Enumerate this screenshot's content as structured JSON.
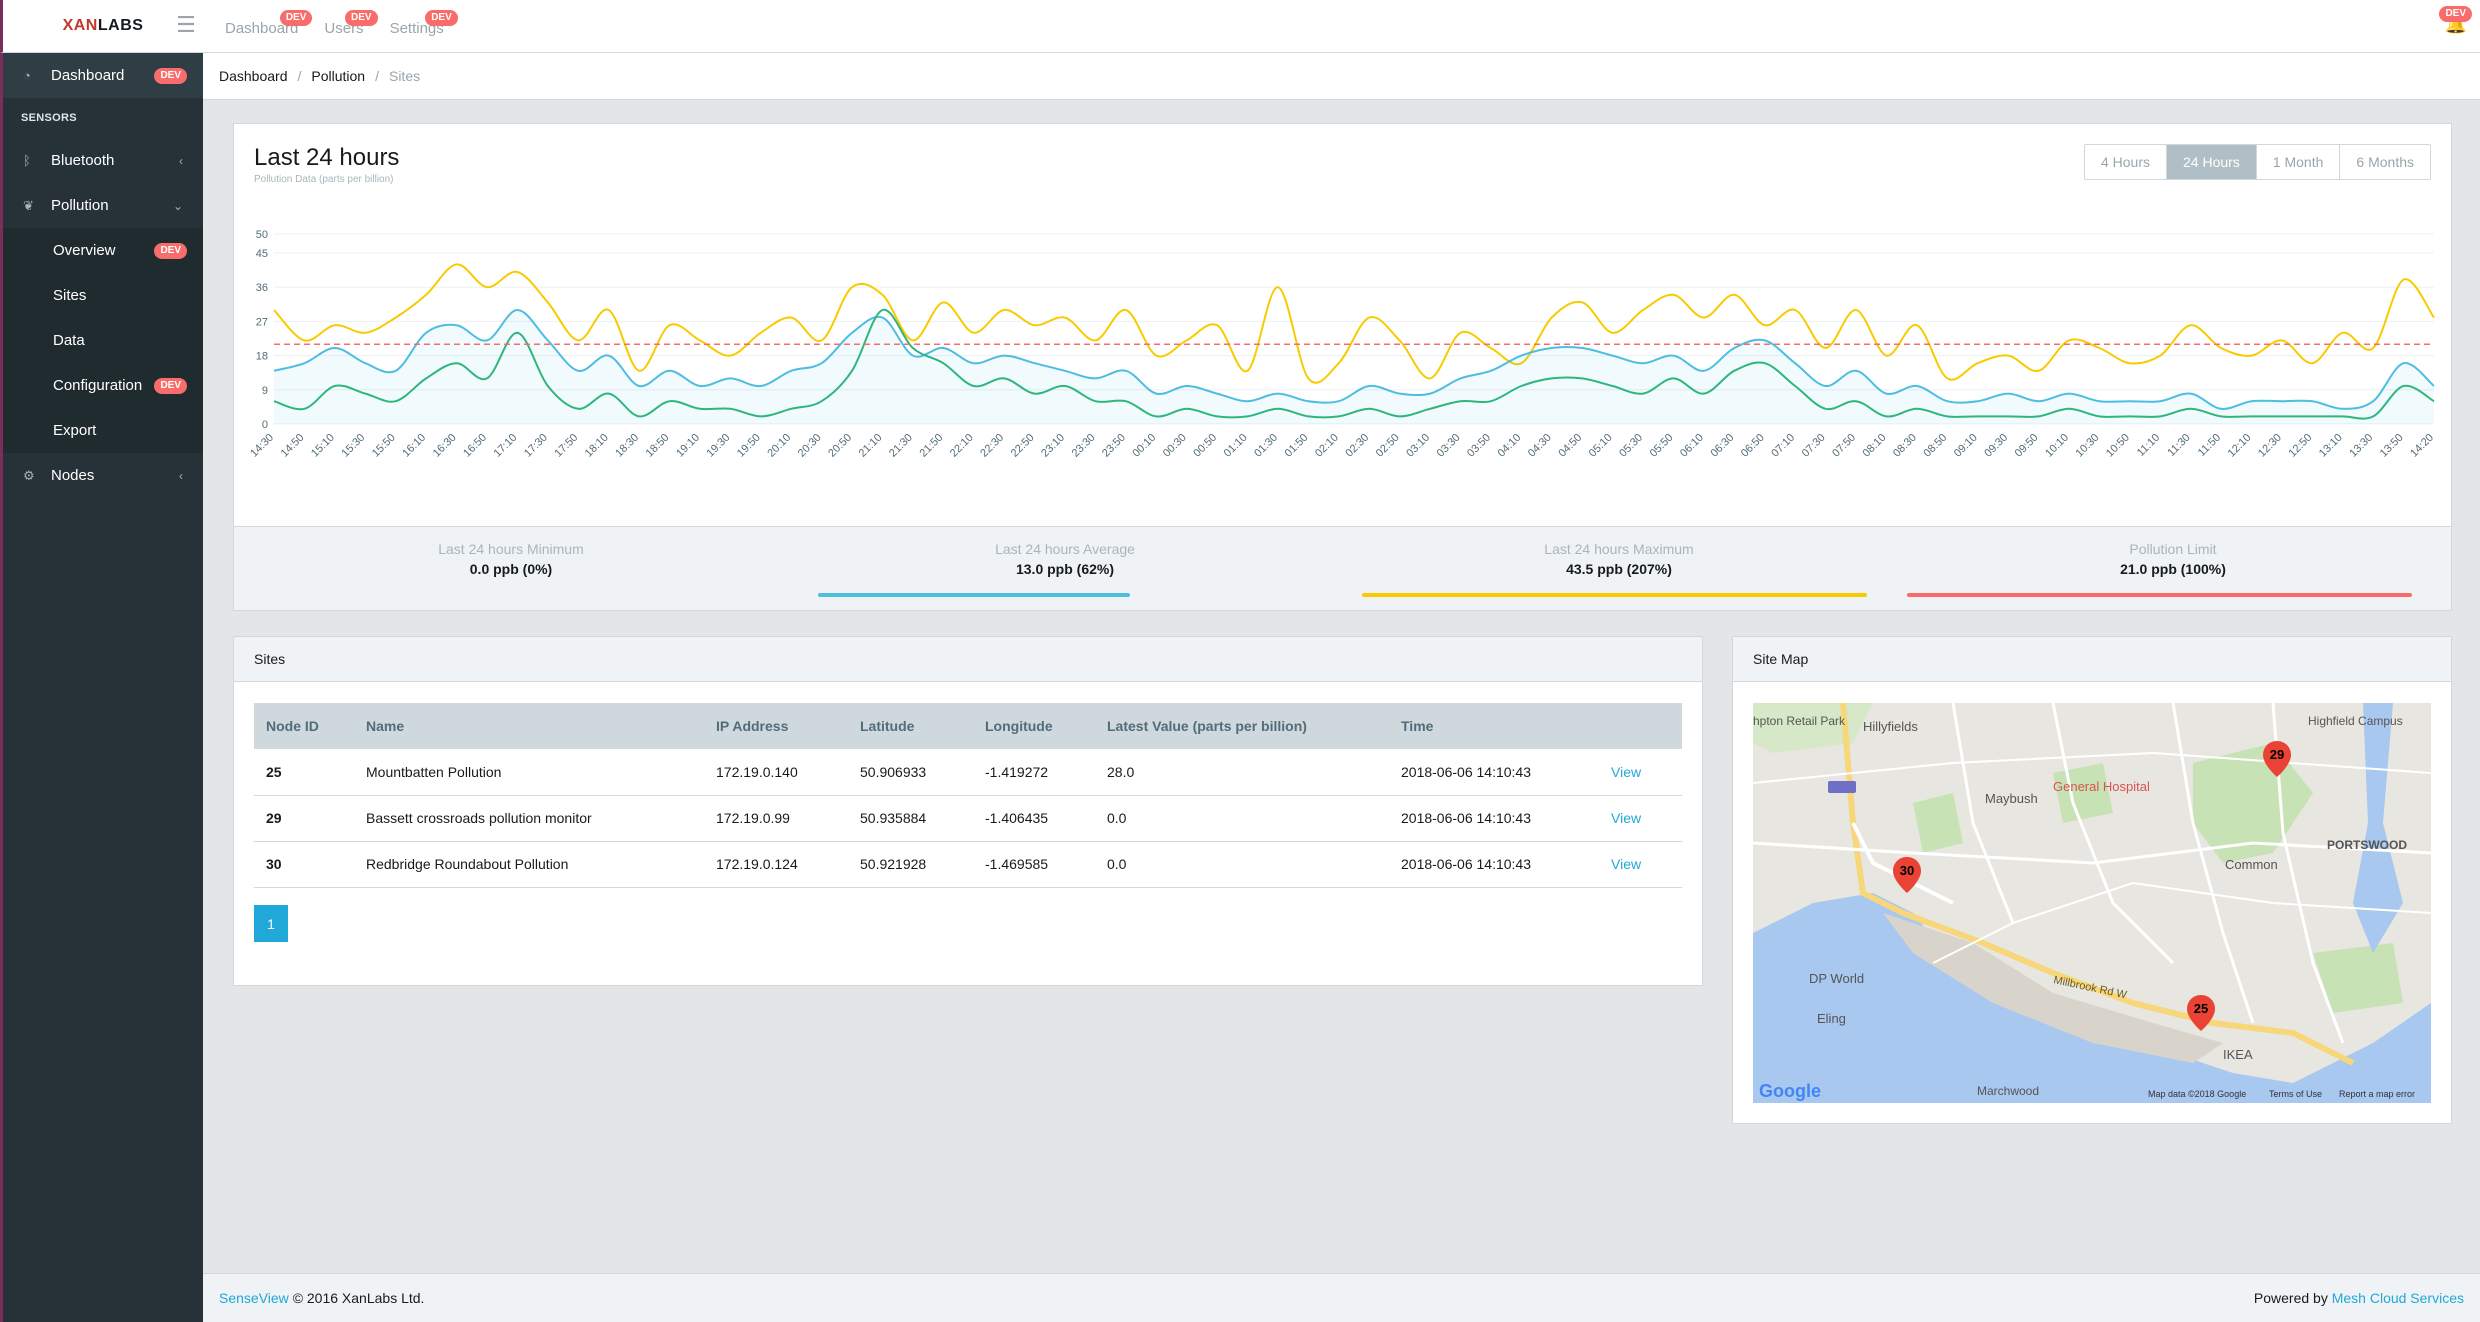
{
  "brand": {
    "prefix": "XAN",
    "suffix": "LABS"
  },
  "top_nav": [
    {
      "label": "Dashboard",
      "badge": "DEV"
    },
    {
      "label": "Users",
      "badge": "DEV"
    },
    {
      "label": "Settings",
      "badge": "DEV"
    }
  ],
  "bell_badge": "DEV",
  "sidebar": {
    "dashboard": {
      "label": "Dashboard",
      "badge": "DEV"
    },
    "section_title": "SENSORS",
    "bluetooth": {
      "label": "Bluetooth"
    },
    "pollution": {
      "label": "Pollution",
      "children": [
        {
          "label": "Overview",
          "badge": "DEV"
        },
        {
          "label": "Sites"
        },
        {
          "label": "Data"
        },
        {
          "label": "Configuration",
          "badge": "DEV"
        },
        {
          "label": "Export"
        }
      ]
    },
    "nodes": {
      "label": "Nodes"
    }
  },
  "breadcrumb": [
    "Dashboard",
    "Pollution",
    "Sites"
  ],
  "chart_card": {
    "title": "Last 24 hours",
    "subtitle": "Pollution Data (parts per billion)",
    "ranges": [
      "4 Hours",
      "24 Hours",
      "1 Month",
      "6 Months"
    ],
    "active_range": "24 Hours",
    "stats": [
      {
        "label": "Last 24 hours Minimum",
        "value": "0.0 ppb (0%)"
      },
      {
        "label": "Last 24 hours Average",
        "value": "13.0 ppb (62%)",
        "color": "#4dbde0"
      },
      {
        "label": "Last 24 hours Maximum",
        "value": "43.5 ppb (207%)",
        "color": "#f8cb00"
      },
      {
        "label": "Pollution Limit",
        "value": "21.0 ppb (100%)",
        "color": "#f86c6b"
      }
    ]
  },
  "chart_data": {
    "type": "line",
    "ylim": [
      0,
      50
    ],
    "yticks": [
      0,
      9,
      18,
      27,
      36,
      45,
      50
    ],
    "x": [
      "14:30",
      "14:50",
      "15:10",
      "15:30",
      "15:50",
      "16:10",
      "16:30",
      "16:50",
      "17:10",
      "17:30",
      "17:50",
      "18:10",
      "18:30",
      "18:50",
      "19:10",
      "19:30",
      "19:50",
      "20:10",
      "20:30",
      "20:50",
      "21:10",
      "21:30",
      "21:50",
      "22:10",
      "22:30",
      "22:50",
      "23:10",
      "23:30",
      "23:50",
      "00:10",
      "00:30",
      "00:50",
      "01:10",
      "01:30",
      "01:50",
      "02:10",
      "02:30",
      "02:50",
      "03:10",
      "03:30",
      "03:50",
      "04:10",
      "04:30",
      "04:50",
      "05:10",
      "05:30",
      "05:50",
      "06:10",
      "06:30",
      "06:50",
      "07:10",
      "07:30",
      "07:50",
      "08:10",
      "08:30",
      "08:50",
      "09:10",
      "09:30",
      "09:50",
      "10:10",
      "10:30",
      "10:50",
      "11:10",
      "11:30",
      "11:50",
      "12:10",
      "12:30",
      "12:50",
      "13:10",
      "13:30",
      "13:50",
      "14:20"
    ],
    "limit": 21,
    "colors": {
      "max": "#f8cb00",
      "avg": "#4dbde0",
      "min": "#2eb67d",
      "limit": "#f86c6b"
    },
    "series": [
      {
        "key": "max",
        "values": [
          30,
          22,
          26,
          24,
          28,
          34,
          42,
          36,
          40,
          32,
          22,
          30,
          14,
          26,
          22,
          18,
          24,
          28,
          22,
          36,
          34,
          22,
          32,
          24,
          30,
          26,
          28,
          22,
          30,
          18,
          22,
          26,
          14,
          36,
          12,
          16,
          28,
          22,
          12,
          24,
          20,
          16,
          28,
          32,
          24,
          30,
          34,
          28,
          34,
          26,
          30,
          20,
          30,
          18,
          26,
          12,
          16,
          18,
          14,
          22,
          20,
          16,
          18,
          26,
          20,
          18,
          22,
          16,
          24,
          20,
          38,
          28
        ]
      },
      {
        "key": "avg",
        "values": [
          14,
          16,
          20,
          16,
          14,
          24,
          26,
          22,
          30,
          22,
          14,
          18,
          10,
          14,
          10,
          12,
          10,
          14,
          16,
          24,
          28,
          18,
          20,
          16,
          18,
          16,
          14,
          12,
          14,
          8,
          10,
          8,
          6,
          8,
          6,
          6,
          10,
          8,
          8,
          12,
          14,
          18,
          20,
          20,
          18,
          16,
          18,
          14,
          20,
          22,
          16,
          10,
          14,
          8,
          10,
          6,
          6,
          8,
          6,
          8,
          6,
          6,
          6,
          8,
          4,
          6,
          6,
          6,
          4,
          6,
          16,
          10
        ]
      },
      {
        "key": "min",
        "values": [
          6,
          4,
          10,
          8,
          6,
          12,
          16,
          12,
          24,
          10,
          4,
          8,
          2,
          6,
          4,
          4,
          2,
          4,
          6,
          14,
          30,
          20,
          16,
          10,
          12,
          8,
          10,
          6,
          6,
          2,
          4,
          2,
          2,
          4,
          2,
          2,
          4,
          2,
          4,
          6,
          6,
          10,
          12,
          12,
          10,
          8,
          12,
          8,
          14,
          16,
          10,
          4,
          6,
          2,
          4,
          2,
          2,
          2,
          2,
          4,
          2,
          2,
          2,
          4,
          2,
          2,
          2,
          2,
          2,
          2,
          10,
          6
        ]
      }
    ]
  },
  "sites": {
    "header": "Sites",
    "columns": [
      "Node ID",
      "Name",
      "IP Address",
      "Latitude",
      "Longitude",
      "Latest Value (parts per billion)",
      "Time",
      ""
    ],
    "rows": [
      {
        "id": "25",
        "name": "Mountbatten Pollution",
        "ip": "172.19.0.140",
        "lat": "50.906933",
        "lon": "-1.419272",
        "value": "28.0",
        "time": "2018-06-06 14:10:43",
        "action": "View"
      },
      {
        "id": "29",
        "name": "Bassett crossroads pollution monitor",
        "ip": "172.19.0.99",
        "lat": "50.935884",
        "lon": "-1.406435",
        "value": "0.0",
        "time": "2018-06-06 14:10:43",
        "action": "View"
      },
      {
        "id": "30",
        "name": "Redbridge Roundabout Pollution",
        "ip": "172.19.0.124",
        "lat": "50.921928",
        "lon": "-1.469585",
        "value": "0.0",
        "time": "2018-06-06 14:10:43",
        "action": "View"
      }
    ],
    "page": "1"
  },
  "map": {
    "header": "Site Map",
    "labels": [
      "Hillyfields",
      "Maybush",
      "General Hospital",
      "Highfield Campus",
      "Common",
      "PORTSWOOD",
      "DP World",
      "Eling",
      "IKEA",
      "Marchwood",
      "Millbrook Rd W",
      "hpton Retail Park"
    ],
    "markers": [
      "29",
      "30",
      "25"
    ],
    "logo": "Google",
    "attribution": [
      "Map data ©2018 Google",
      "Terms of Use",
      "Report a map error"
    ]
  },
  "footer": {
    "product": "SenseView",
    "copyright": "© 2016 XanLabs Ltd.",
    "powered_by": "Powered by",
    "vendor": "Mesh Cloud Services"
  }
}
